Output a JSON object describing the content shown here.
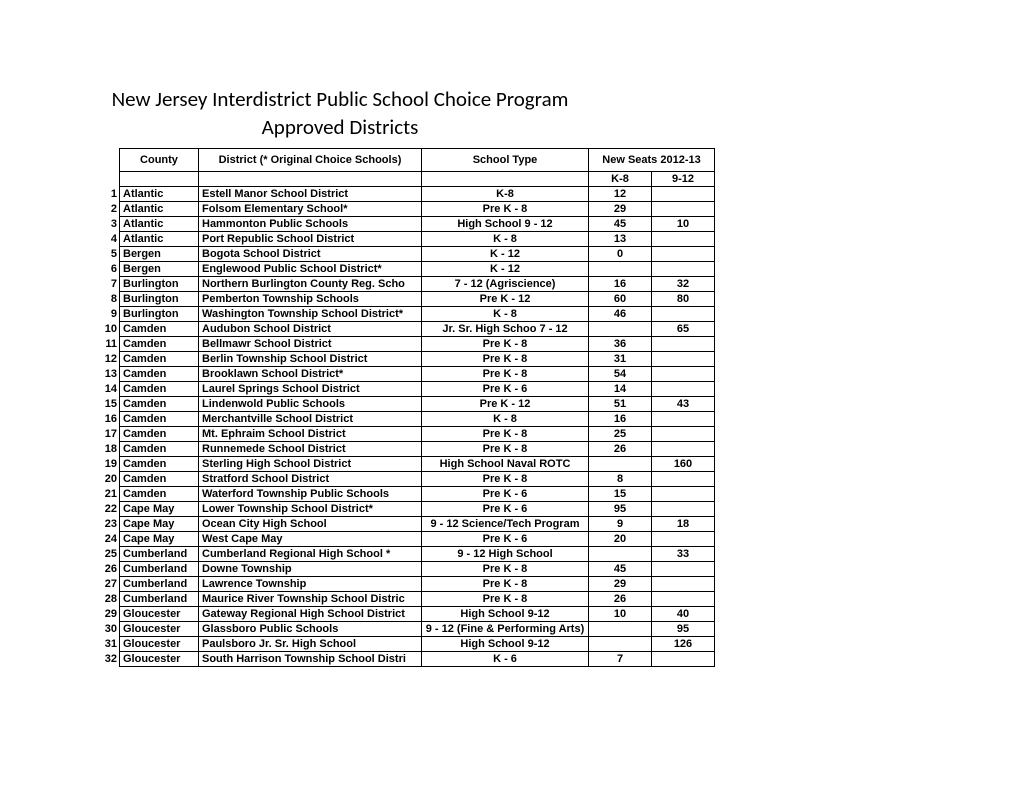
{
  "title": {
    "line1": "New Jersey Interdistrict Public School Choice Program",
    "line2": "Approved Districts"
  },
  "headers": {
    "county": "County",
    "district": "District  (* Original Choice Schools)",
    "schoolType": "School Type",
    "newSeats": "New Seats 2012-13",
    "k8": "K-8",
    "n912": "9-12"
  },
  "columns": {
    "widths": {
      "num": 14,
      "county": 72,
      "district": 216,
      "type": 160,
      "k8": 56,
      "n912": 56
    },
    "align": {
      "num": "right",
      "county": "left",
      "district": "left",
      "type": "center",
      "k8": "center",
      "n912": "center"
    }
  },
  "styling": {
    "background_color": "#ffffff",
    "border_color": "#000000",
    "text_color": "#000000",
    "body_font": "Arial",
    "body_fontsize": 11,
    "body_fontweight": "bold",
    "title_font": "Calibri",
    "title_fontsize": 21
  },
  "rows": [
    {
      "n": "1",
      "county": "Atlantic",
      "district": "Estell Manor School District",
      "type": "K-8",
      "k8": "12",
      "n912": ""
    },
    {
      "n": "2",
      "county": "Atlantic",
      "district": "Folsom Elementary School*",
      "type": "Pre K - 8",
      "k8": "29",
      "n912": ""
    },
    {
      "n": "3",
      "county": "Atlantic",
      "district": "Hammonton Public Schools",
      "type": "High School 9 - 12",
      "k8": "45",
      "n912": "10"
    },
    {
      "n": "4",
      "county": "Atlantic",
      "district": "Port Republic School District",
      "type": "K - 8",
      "k8": "13",
      "n912": ""
    },
    {
      "n": "5",
      "county": "Bergen",
      "district": "Bogota School District",
      "type": "K - 12",
      "k8": "0",
      "n912": ""
    },
    {
      "n": "6",
      "county": "Bergen",
      "district": "Englewood Public School District*",
      "type": "K - 12",
      "k8": "",
      "n912": ""
    },
    {
      "n": "7",
      "county": "Burlington",
      "district": "Northern Burlington County Reg. Scho",
      "type": "7 - 12 (Agriscience)",
      "k8": "16",
      "n912": "32"
    },
    {
      "n": "8",
      "county": "Burlington",
      "district": "Pemberton Township Schools",
      "type": "Pre K - 12",
      "k8": "60",
      "n912": "80"
    },
    {
      "n": "9",
      "county": "Burlington",
      "district": "Washington Township School District*",
      "type": "K - 8",
      "k8": "46",
      "n912": ""
    },
    {
      "n": "10",
      "county": "Camden",
      "district": "Audubon School District",
      "type": "Jr. Sr. High Schoo 7 - 12",
      "k8": "",
      "n912": "65"
    },
    {
      "n": "11",
      "county": "Camden",
      "district": "Bellmawr School District",
      "type": "Pre K - 8",
      "k8": "36",
      "n912": ""
    },
    {
      "n": "12",
      "county": "Camden",
      "district": "Berlin Township School District",
      "type": "Pre K - 8",
      "k8": "31",
      "n912": ""
    },
    {
      "n": "13",
      "county": "Camden",
      "district": "Brooklawn School District*",
      "type": "Pre K - 8",
      "k8": "54",
      "n912": ""
    },
    {
      "n": "14",
      "county": "Camden",
      "district": "Laurel Springs School District",
      "type": "Pre K - 6",
      "k8": "14",
      "n912": ""
    },
    {
      "n": "15",
      "county": "Camden",
      "district": "Lindenwold Public Schools",
      "type": "Pre K - 12",
      "k8": "51",
      "n912": "43"
    },
    {
      "n": "16",
      "county": "Camden",
      "district": "Merchantville School District",
      "type": "K - 8",
      "k8": "16",
      "n912": ""
    },
    {
      "n": "17",
      "county": "Camden",
      "district": "Mt. Ephraim School District",
      "type": "Pre K - 8",
      "k8": "25",
      "n912": ""
    },
    {
      "n": "18",
      "county": "Camden",
      "district": "Runnemede School District",
      "type": "Pre K - 8",
      "k8": "26",
      "n912": ""
    },
    {
      "n": "19",
      "county": "Camden",
      "district": "Sterling High School District",
      "type": "High School Naval ROTC",
      "k8": "",
      "n912": "160"
    },
    {
      "n": "20",
      "county": "Camden",
      "district": "Stratford School District",
      "type": "Pre K - 8",
      "k8": "8",
      "n912": ""
    },
    {
      "n": "21",
      "county": "Camden",
      "district": "Waterford Township Public Schools",
      "type": "Pre K - 6",
      "k8": "15",
      "n912": ""
    },
    {
      "n": "22",
      "county": "Cape May",
      "district": "Lower Township School District*",
      "type": "Pre K - 6",
      "k8": "95",
      "n912": ""
    },
    {
      "n": "23",
      "county": "Cape May",
      "district": "Ocean City High School",
      "type": "9 - 12 Science/Tech Program",
      "k8": "9",
      "n912": "18"
    },
    {
      "n": "24",
      "county": "Cape May",
      "district": "West Cape May",
      "type": "Pre K - 6",
      "k8": "20",
      "n912": ""
    },
    {
      "n": "25",
      "county": "Cumberland",
      "district": "Cumberland Regional High School *",
      "type": "9 - 12 High School",
      "k8": "",
      "n912": "33"
    },
    {
      "n": "26",
      "county": "Cumberland",
      "district": "Downe Township",
      "type": "Pre K - 8",
      "k8": "45",
      "n912": ""
    },
    {
      "n": "27",
      "county": "Cumberland",
      "district": "Lawrence Township",
      "type": "Pre K - 8",
      "k8": "29",
      "n912": ""
    },
    {
      "n": "28",
      "county": "Cumberland",
      "district": "Maurice River Township School Distric",
      "type": "Pre K - 8",
      "k8": "26",
      "n912": ""
    },
    {
      "n": "29",
      "county": "Gloucester",
      "district": "Gateway Regional High School District",
      "type": "High School 9-12",
      "k8": "10",
      "n912": "40"
    },
    {
      "n": "30",
      "county": "Gloucester",
      "district": "Glassboro Public Schools",
      "type": "9 - 12 (Fine & Performing Arts)",
      "k8": "",
      "n912": "95"
    },
    {
      "n": "31",
      "county": "Gloucester",
      "district": "Paulsboro Jr. Sr. High School",
      "type": "High School 9-12",
      "k8": "",
      "n912": "126"
    },
    {
      "n": "32",
      "county": "Gloucester",
      "district": "South Harrison Township School Distri",
      "type": "K - 6",
      "k8": "7",
      "n912": ""
    }
  ]
}
